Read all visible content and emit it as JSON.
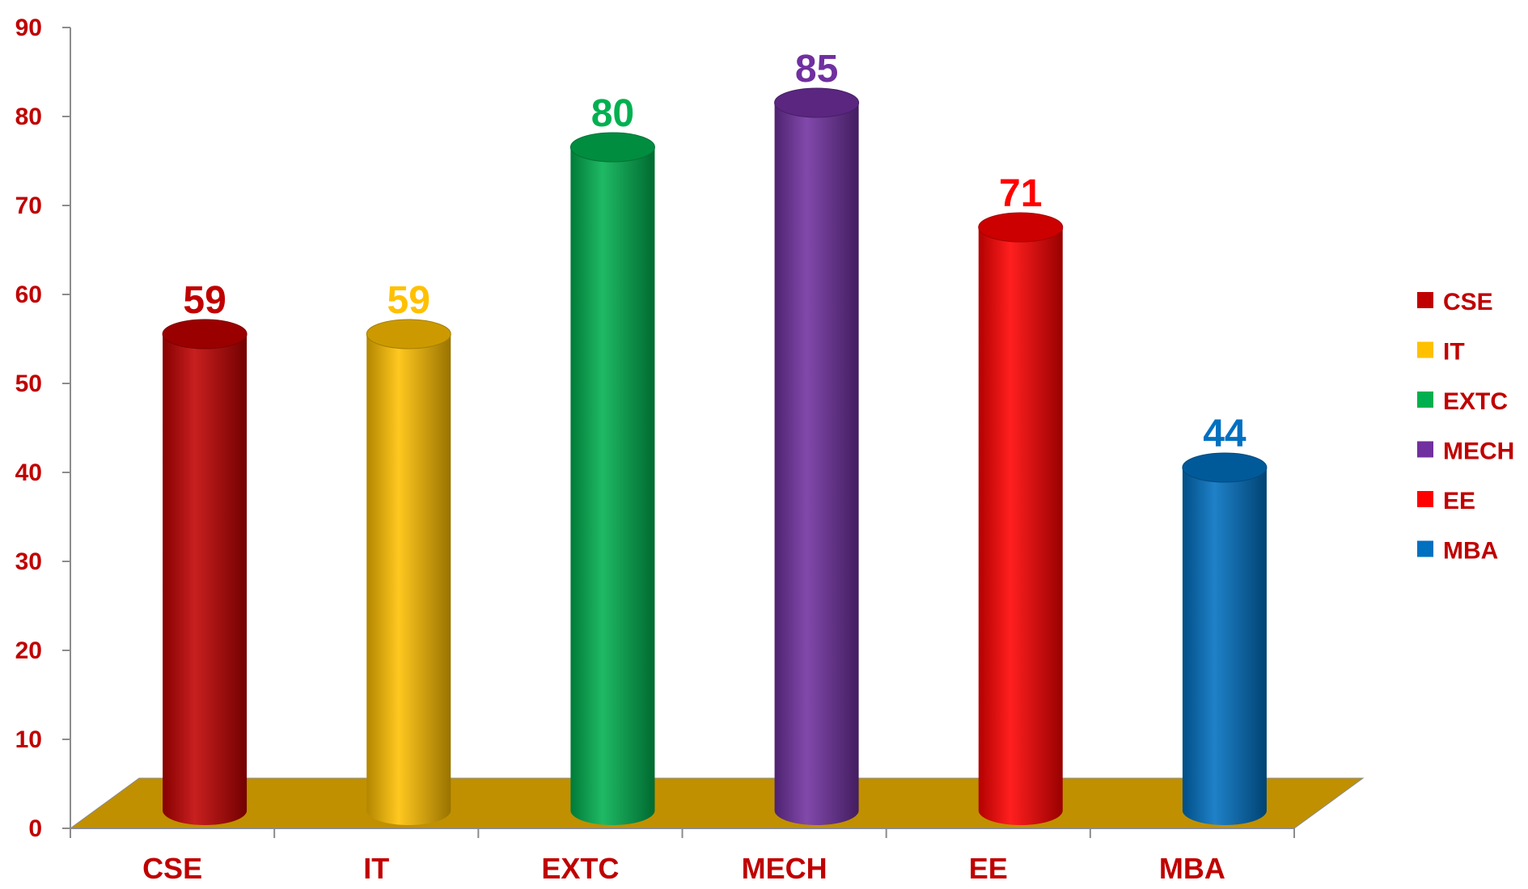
{
  "chart_data": {
    "type": "bar",
    "title": "",
    "xlabel": "",
    "ylabel": "",
    "categories": [
      "CSE",
      "IT",
      "EXTC",
      "MECH",
      "EE",
      "MBA"
    ],
    "values": [
      59,
      59,
      80,
      85,
      71,
      44
    ],
    "data_labels": [
      "59",
      "59",
      "80",
      "85",
      "71",
      "44"
    ],
    "colors": [
      "#C00000",
      "#FFC000",
      "#00B050",
      "#7030A0",
      "#FF0000",
      "#0070C0"
    ],
    "floor_color": "#C09000",
    "ylim": [
      0,
      90
    ],
    "yticks": [
      0,
      10,
      20,
      30,
      40,
      50,
      60,
      70,
      80,
      90
    ],
    "ytick_labels": [
      "0",
      "10",
      "20",
      "30",
      "40",
      "50",
      "60",
      "70",
      "80",
      "90"
    ],
    "axis_label_color": "#C00000",
    "grid": false,
    "legend": {
      "placement": "right",
      "entries": [
        "CSE",
        "IT",
        "EXTC",
        "MECH",
        "EE",
        "MBA"
      ]
    }
  }
}
